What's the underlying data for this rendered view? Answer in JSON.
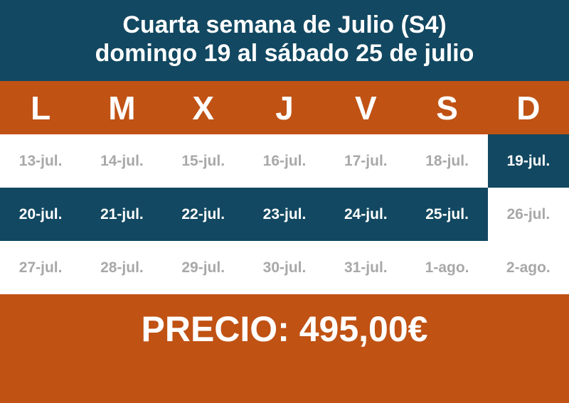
{
  "title": {
    "line1": "Cuarta semana de Julio (S4)",
    "line2": "domingo 19 al sábado 25 de julio"
  },
  "weekdays": [
    "L",
    "M",
    "X",
    "J",
    "V",
    "S",
    "D"
  ],
  "rows": [
    [
      {
        "d": "13-jul.",
        "hl": false
      },
      {
        "d": "14-jul.",
        "hl": false
      },
      {
        "d": "15-jul.",
        "hl": false
      },
      {
        "d": "16-jul.",
        "hl": false
      },
      {
        "d": "17-jul.",
        "hl": false
      },
      {
        "d": "18-jul.",
        "hl": false
      },
      {
        "d": "19-jul.",
        "hl": true
      }
    ],
    [
      {
        "d": "20-jul.",
        "hl": true
      },
      {
        "d": "21-jul.",
        "hl": true
      },
      {
        "d": "22-jul.",
        "hl": true
      },
      {
        "d": "23-jul.",
        "hl": true
      },
      {
        "d": "24-jul.",
        "hl": true
      },
      {
        "d": "25-jul.",
        "hl": true
      },
      {
        "d": "26-jul.",
        "hl": false
      }
    ],
    [
      {
        "d": "27-jul.",
        "hl": false
      },
      {
        "d": "28-jul.",
        "hl": false
      },
      {
        "d": "29-jul.",
        "hl": false
      },
      {
        "d": "30-jul.",
        "hl": false
      },
      {
        "d": "31-jul.",
        "hl": false
      },
      {
        "d": "1-ago.",
        "hl": false
      },
      {
        "d": "2-ago.",
        "hl": false
      }
    ]
  ],
  "price": "PRECIO: 495,00€",
  "colors": {
    "blue": "#124861",
    "orange": "#c05214",
    "muted_text": "#a8a8a8"
  }
}
